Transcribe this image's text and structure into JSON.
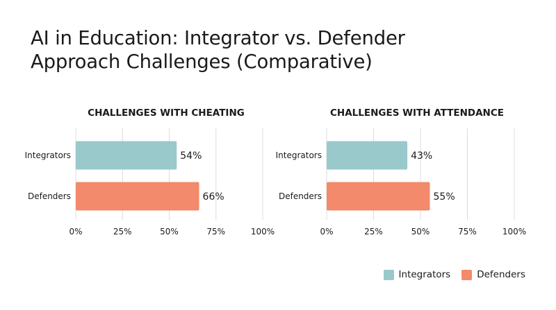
{
  "title_lines": [
    "AI in Education: Integrator vs. Defender",
    "Approach Challenges (Comparative)"
  ],
  "colors": {
    "integrators": "#99c9cb",
    "defenders": "#f28a6b",
    "grid": "#dcdcdc"
  },
  "legend": [
    {
      "label": "Integrators",
      "color": "#99c9cb"
    },
    {
      "label": "Defenders",
      "color": "#f28a6b"
    }
  ],
  "chart_data": [
    {
      "type": "bar",
      "orientation": "horizontal",
      "title": "CHALLENGES WITH CHEATING",
      "categories": [
        "Integrators",
        "Defenders"
      ],
      "values": [
        54,
        66
      ],
      "value_labels": [
        "54%",
        "66%"
      ],
      "xlim": [
        0,
        100
      ],
      "xticks": [
        0,
        25,
        50,
        75,
        100
      ],
      "xtick_labels": [
        "0%",
        "25%",
        "50%",
        "75%",
        "100%"
      ],
      "grid": true
    },
    {
      "type": "bar",
      "orientation": "horizontal",
      "title": "CHALLENGES WITH ATTENDANCE",
      "categories": [
        "Integrators",
        "Defenders"
      ],
      "values": [
        43,
        55
      ],
      "value_labels": [
        "43%",
        "55%"
      ],
      "xlim": [
        0,
        100
      ],
      "xticks": [
        0,
        25,
        50,
        75,
        100
      ],
      "xtick_labels": [
        "0%",
        "25%",
        "50%",
        "75%",
        "100%"
      ],
      "grid": true
    }
  ]
}
